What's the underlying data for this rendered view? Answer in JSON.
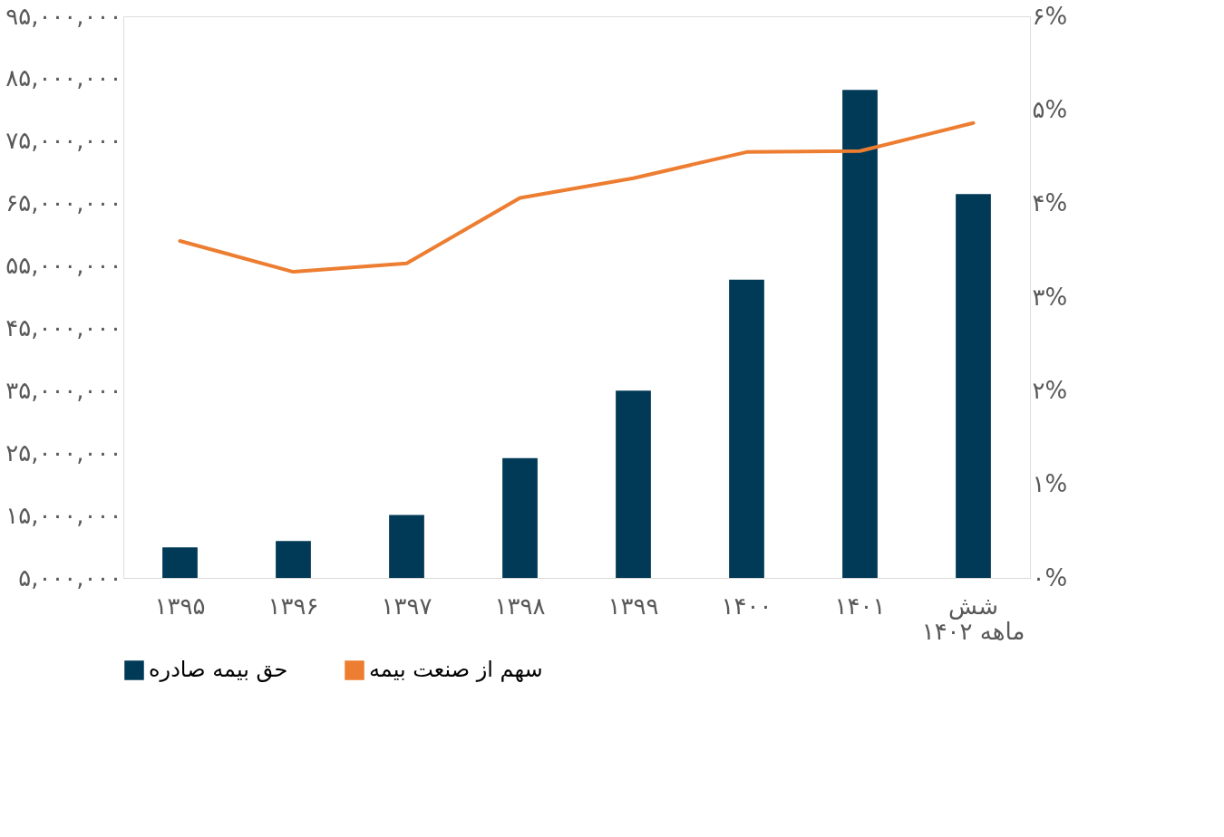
{
  "chart_data": {
    "type": "bar",
    "categories": [
      "۱۳۹۵",
      "۱۳۹۶",
      "۱۳۹۷",
      "۱۳۹۸",
      "۱۳۹۹",
      "۱۴۰۰",
      "۱۴۰۱",
      "شش ماهه ۱۴۰۲"
    ],
    "series": [
      {
        "name": "حق بیمه صادره",
        "color": "#003a57",
        "values": [
          9900000,
          10900000,
          15100000,
          24200000,
          35000000,
          52800000,
          83200000,
          66500000
        ]
      },
      {
        "name": "سهم از صنعت بیمه",
        "color": "#ed7d31",
        "type": "line",
        "axis": "y2",
        "values": [
          3.6,
          3.27,
          3.36,
          4.06,
          4.27,
          4.55,
          4.56,
          4.86
        ]
      }
    ],
    "ylim": [
      5000000,
      95000000
    ],
    "yticks": [
      {
        "value": 5000000,
        "label": "۵,۰۰۰,۰۰۰"
      },
      {
        "value": 15000000,
        "label": "۱۵,۰۰۰,۰۰۰"
      },
      {
        "value": 25000000,
        "label": "۲۵,۰۰۰,۰۰۰"
      },
      {
        "value": 35000000,
        "label": "۳۵,۰۰۰,۰۰۰"
      },
      {
        "value": 45000000,
        "label": "۴۵,۰۰۰,۰۰۰"
      },
      {
        "value": 55000000,
        "label": "۵۵,۰۰۰,۰۰۰"
      },
      {
        "value": 65000000,
        "label": "۶۵,۰۰۰,۰۰۰"
      },
      {
        "value": 75000000,
        "label": "۷۵,۰۰۰,۰۰۰"
      },
      {
        "value": 85000000,
        "label": "۸۵,۰۰۰,۰۰۰"
      },
      {
        "value": 95000000,
        "label": "۹۵,۰۰۰,۰۰۰"
      }
    ],
    "y2lim": [
      0,
      6
    ],
    "y2ticks": [
      {
        "value": 0,
        "label": "۰%"
      },
      {
        "value": 1,
        "label": "۱%"
      },
      {
        "value": 2,
        "label": "۲%"
      },
      {
        "value": 3,
        "label": "۳%"
      },
      {
        "value": 4,
        "label": "۴%"
      },
      {
        "value": 5,
        "label": "۵%"
      },
      {
        "value": 6,
        "label": "۶%"
      }
    ],
    "grid": false,
    "legend": "bottom"
  }
}
